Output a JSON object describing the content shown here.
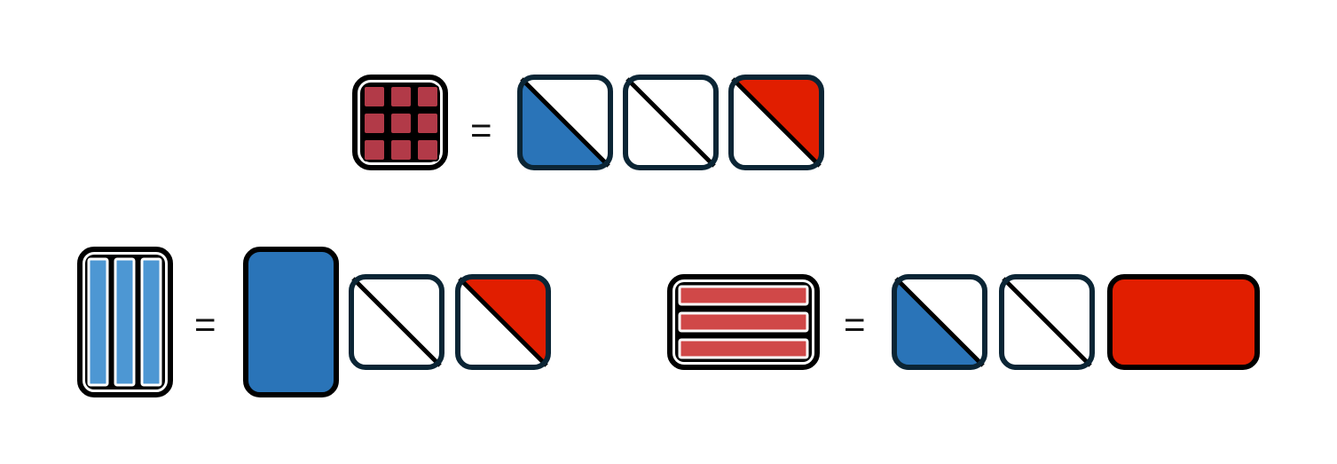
{
  "equations": {
    "top": {
      "equals_sign": "="
    },
    "bottom_left": {
      "equals_sign": "="
    },
    "bottom_right": {
      "equals_sign": "="
    }
  },
  "colors": {
    "blue": "#2a74b8",
    "red": "#e11e00",
    "dark_outline": "#0b2535",
    "black": "#000000",
    "grid_cell_fill": "#b23a48",
    "vertical_bar_fill": "#4d97d3",
    "horizontal_bar_fill": "#d04848"
  },
  "icons": [
    "grid-3x3-icon",
    "vertical-bars-icon",
    "horizontal-bars-icon",
    "diagonal-split-tile",
    "solid-tile"
  ]
}
